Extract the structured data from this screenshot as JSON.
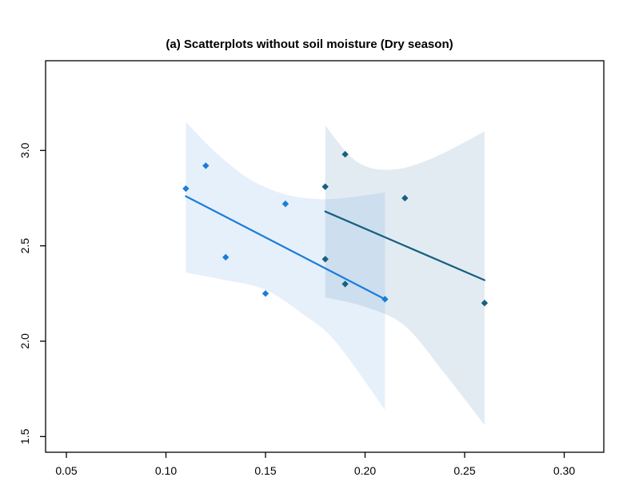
{
  "figure": {
    "background": "#ffffff",
    "box_color": "#000000",
    "tick_color": "#000000"
  },
  "chart_data": {
    "type": "scatter",
    "title": "(a) Scatterplots without soil moisture (Dry season)",
    "xlabel": "",
    "ylabel": "",
    "xlim": [
      0.039,
      0.317
    ],
    "ylim": [
      1.43,
      3.47
    ],
    "grid": false,
    "legend_position": "none",
    "x_tick_values": [
      0.05,
      0.1,
      0.15,
      0.2,
      0.25,
      0.3
    ],
    "x_tick_labels": [
      "0.05",
      "0.10",
      "0.15",
      "0.20",
      "0.25",
      "0.30"
    ],
    "y_tick_values": [
      1.5,
      2.0,
      2.5,
      3.0
    ],
    "y_tick_labels": [
      "1.5",
      "2.0",
      "2.5",
      "3.0"
    ],
    "series": [
      {
        "name": "group-1-light-blue",
        "marker": "diamond",
        "color": "#1b7dd8",
        "points": [
          [
            0.11,
            2.8
          ],
          [
            0.12,
            2.92
          ],
          [
            0.13,
            2.44
          ],
          [
            0.15,
            2.25
          ],
          [
            0.16,
            2.72
          ],
          [
            0.21,
            2.22
          ]
        ],
        "regression_line": {
          "x1": 0.11,
          "y1": 2.76,
          "x2": 0.21,
          "y2": 2.22
        },
        "ci_band": {
          "fill": "rgba(33,126,220,0.115)",
          "top": [
            [
              0.11,
              3.15
            ],
            [
              0.125,
              2.99
            ],
            [
              0.142,
              2.85
            ],
            [
              0.16,
              2.77
            ],
            [
              0.178,
              2.745
            ],
            [
              0.193,
              2.755
            ],
            [
              0.21,
              2.78
            ]
          ],
          "bottom": [
            [
              0.11,
              2.36
            ],
            [
              0.13,
              2.32
            ],
            [
              0.15,
              2.27
            ],
            [
              0.169,
              2.14
            ],
            [
              0.185,
              2.0
            ],
            [
              0.21,
              1.64
            ]
          ]
        }
      },
      {
        "name": "group-2-dark-teal",
        "marker": "diamond",
        "color": "#15607f",
        "points": [
          [
            0.18,
            2.81
          ],
          [
            0.18,
            2.43
          ],
          [
            0.19,
            2.98
          ],
          [
            0.19,
            2.3
          ],
          [
            0.22,
            2.75
          ],
          [
            0.26,
            2.2
          ]
        ],
        "regression_line": {
          "x1": 0.18,
          "y1": 2.68,
          "x2": 0.26,
          "y2": 2.32
        },
        "ci_band": {
          "fill": "rgba(60,110,160,0.14)",
          "top": [
            [
              0.18,
              3.13
            ],
            [
              0.196,
              2.94
            ],
            [
              0.214,
              2.9
            ],
            [
              0.235,
              2.965
            ],
            [
              0.26,
              3.1
            ]
          ],
          "bottom": [
            [
              0.18,
              2.23
            ],
            [
              0.2,
              2.18
            ],
            [
              0.22,
              2.08
            ],
            [
              0.24,
              1.83
            ],
            [
              0.26,
              1.56
            ]
          ]
        }
      }
    ]
  }
}
